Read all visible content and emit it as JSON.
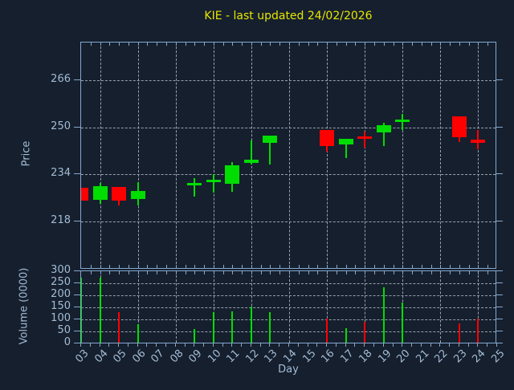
{
  "title": "KIE - last updated 24/02/2026",
  "x_axis": {
    "label": "Day",
    "tick_labels": [
      "03",
      "04",
      "05",
      "06",
      "07",
      "08",
      "09",
      "10",
      "11",
      "12",
      "13",
      "14",
      "15",
      "16",
      "17",
      "18",
      "19",
      "20",
      "21",
      "22",
      "23",
      "24",
      "25"
    ]
  },
  "price_panel": {
    "axis_label": "Price",
    "tick_labels": [
      "266",
      "250",
      "234",
      "218"
    ]
  },
  "volume_panel": {
    "axis_label": "Volume (0000)",
    "tick_labels": [
      "300",
      "250",
      "200",
      "150",
      "100",
      "50",
      "0"
    ]
  },
  "chart_data": {
    "type": "candlestick",
    "title": "KIE - last updated 24/02/2026",
    "xlabel": "Day",
    "ylabel_price": "Price",
    "ylabel_volume": "Volume (0000)",
    "x_day_range": [
      3,
      25
    ],
    "price_axis_ticks": [
      266,
      250,
      234,
      218
    ],
    "price_ylim": [
      201.5,
      279
    ],
    "volume_axis_ticks": [
      300,
      250,
      200,
      150,
      100,
      50,
      0
    ],
    "volume_ylim": [
      0,
      300
    ],
    "x_gridline_days": [
      4,
      6,
      8,
      10,
      12,
      14,
      16,
      18,
      20,
      22,
      24
    ],
    "price_gridlines": [
      266,
      250,
      234,
      218
    ],
    "volume_gridlines": [
      250,
      200,
      150,
      100,
      50
    ],
    "grid": "dashed",
    "colors": {
      "background": "#151f2e",
      "frame": "#85a8cc",
      "tick_text": "#a4bcd4",
      "title_text": "#e6e600",
      "grid": "#98a2ac",
      "up": "#00dd00",
      "down": "#ff0000"
    },
    "series": [
      {
        "day": "03",
        "open": 229.5,
        "high": 229.5,
        "low": 225.0,
        "close": 225.0,
        "volume": 275,
        "volume_color": "up"
      },
      {
        "day": "04",
        "open": 225.5,
        "high": 231.2,
        "low": 224.0,
        "close": 230.0,
        "volume": 275,
        "volume_color": "up"
      },
      {
        "day": "05",
        "open": 229.7,
        "high": 229.7,
        "low": 223.5,
        "close": 225.2,
        "volume": 130,
        "volume_color": "down"
      },
      {
        "day": "06",
        "open": 225.7,
        "high": 231.3,
        "low": 223.5,
        "close": 228.5,
        "volume": 80,
        "volume_color": "up"
      },
      {
        "day": "09",
        "open": 230.4,
        "high": 232.7,
        "low": 226.5,
        "close": 231.0,
        "volume": 60,
        "volume_color": "up"
      },
      {
        "day": "10",
        "open": 231.4,
        "high": 234.0,
        "low": 227.8,
        "close": 232.1,
        "volume": 130,
        "volume_color": "up"
      },
      {
        "day": "11",
        "open": 230.7,
        "high": 238.3,
        "low": 228.0,
        "close": 237.2,
        "volume": 135,
        "volume_color": "up"
      },
      {
        "day": "12",
        "open": 238.0,
        "high": 245.6,
        "low": 237.3,
        "close": 238.9,
        "volume": 155,
        "volume_color": "up"
      },
      {
        "day": "13",
        "open": 244.8,
        "high": 247.2,
        "low": 237.3,
        "close": 247.2,
        "volume": 130,
        "volume_color": "up"
      },
      {
        "day": "16",
        "open": 249.0,
        "high": 249.0,
        "low": 241.6,
        "close": 243.5,
        "volume": 105,
        "volume_color": "down"
      },
      {
        "day": "17",
        "open": 244.1,
        "high": 246.2,
        "low": 239.6,
        "close": 246.2,
        "volume": 65,
        "volume_color": "up"
      },
      {
        "day": "18",
        "open": 247.0,
        "high": 248.5,
        "low": 243.0,
        "close": 246.1,
        "volume": 90,
        "volume_color": "down"
      },
      {
        "day": "19",
        "open": 248.3,
        "high": 251.5,
        "low": 243.7,
        "close": 250.8,
        "volume": 235,
        "volume_color": "up"
      },
      {
        "day": "20",
        "open": 251.7,
        "high": 254.5,
        "low": 249.0,
        "close": 252.7,
        "volume": 170,
        "volume_color": "up"
      },
      {
        "day": "23",
        "open": 253.7,
        "high": 253.7,
        "low": 245.1,
        "close": 246.5,
        "volume": 85,
        "volume_color": "down"
      },
      {
        "day": "24",
        "open": 245.9,
        "high": 249.0,
        "low": 242.5,
        "close": 244.7,
        "volume": 105,
        "volume_color": "down"
      }
    ]
  }
}
